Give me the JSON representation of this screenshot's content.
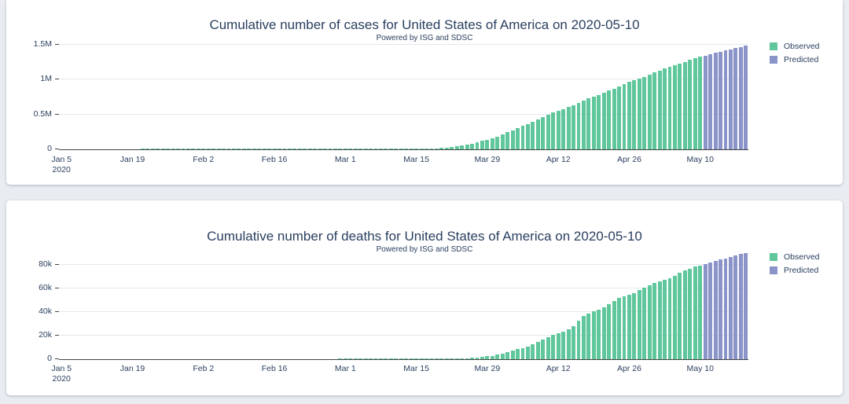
{
  "page": {
    "background": "#e9edf2",
    "card_background": "#ffffff"
  },
  "colors": {
    "observed": "#5fc79b",
    "predicted": "#8a94c8",
    "title_text": "#2a3f5f",
    "tick_text": "#2a3f5f",
    "axis_line": "#444444",
    "gridline": "#e5e8ec"
  },
  "chart_data": [
    {
      "type": "bar",
      "title": "Cumulative number of cases for United States of America on 2020-05-10",
      "subtitle": "Powered by ISG and SDSC",
      "ylabel": "",
      "xlabel": "",
      "ylim": [
        0,
        1580000
      ],
      "grid": true,
      "legend_position": "right-top",
      "y_ticks": [
        {
          "label": "0",
          "value": 0
        },
        {
          "label": "0.5M",
          "value": 500000
        },
        {
          "label": "1M",
          "value": 1000000
        },
        {
          "label": "1.5M",
          "value": 1500000
        }
      ],
      "x_ticks": [
        {
          "day": 0,
          "lines": [
            "Jan 5",
            "2020"
          ]
        },
        {
          "day": 14,
          "lines": [
            "Jan 19"
          ]
        },
        {
          "day": 28,
          "lines": [
            "Feb 2"
          ]
        },
        {
          "day": 42,
          "lines": [
            "Feb 16"
          ]
        },
        {
          "day": 56,
          "lines": [
            "Mar 1"
          ]
        },
        {
          "day": 70,
          "lines": [
            "Mar 15"
          ]
        },
        {
          "day": 84,
          "lines": [
            "Mar 29"
          ]
        },
        {
          "day": 98,
          "lines": [
            "Apr 12"
          ]
        },
        {
          "day": 112,
          "lines": [
            "Apr 26"
          ]
        },
        {
          "day": 126,
          "lines": [
            "May 10"
          ]
        }
      ],
      "series": [
        {
          "name": "Observed",
          "color_key": "observed",
          "start_date": "2020-01-05",
          "values": [
            0,
            0,
            0,
            0,
            0,
            0,
            0,
            0,
            0,
            0,
            0,
            0,
            0,
            0,
            0,
            0,
            1,
            1,
            1,
            2,
            2,
            2,
            5,
            5,
            5,
            5,
            6,
            8,
            8,
            11,
            11,
            11,
            11,
            11,
            11,
            11,
            11,
            12,
            12,
            13,
            13,
            13,
            15,
            15,
            15,
            15,
            15,
            15,
            35,
            35,
            35,
            53,
            57,
            60,
            64,
            68,
            75,
            100,
            124,
            158,
            221,
            319,
            435,
            541,
            704,
            994,
            1301,
            1697,
            2247,
            2943,
            3680,
            4663,
            6421,
            7786,
            13680,
            19100,
            25500,
            33300,
            43800,
            53700,
            65800,
            83800,
            101700,
            121400,
            140900,
            163800,
            186100,
            213400,
            243500,
            275600,
            308900,
            337100,
            366700,
            396200,
            428300,
            461400,
            496500,
            526400,
            555300,
            580600,
            607700,
            636400,
            667600,
            699700,
            732200,
            759100,
            784300,
            811900,
            842600,
            869200,
            905400,
            938200,
            965800,
            988500,
            1012600,
            1040500,
            1069400,
            1103500,
            1133100,
            1158300,
            1180600,
            1204400,
            1228600,
            1257000,
            1283900,
            1309500,
            1329300
          ]
        },
        {
          "name": "Predicted",
          "color_key": "predicted",
          "start_date": "2020-05-11",
          "values": [
            1347000,
            1365000,
            1383000,
            1400000,
            1418000,
            1436000,
            1453000,
            1471000,
            1488000
          ]
        }
      ]
    },
    {
      "type": "bar",
      "title": "Cumulative number of deaths for United States of America on 2020-05-10",
      "subtitle": "Powered by ISG and SDSC",
      "ylabel": "",
      "xlabel": "",
      "ylim": [
        0,
        93000
      ],
      "grid": true,
      "legend_position": "right-top",
      "y_ticks": [
        {
          "label": "0",
          "value": 0
        },
        {
          "label": "20k",
          "value": 20000
        },
        {
          "label": "40k",
          "value": 40000
        },
        {
          "label": "60k",
          "value": 60000
        },
        {
          "label": "80k",
          "value": 80000
        }
      ],
      "x_ticks": [
        {
          "day": 0,
          "lines": [
            "Jan 5",
            "2020"
          ]
        },
        {
          "day": 14,
          "lines": [
            "Jan 19"
          ]
        },
        {
          "day": 28,
          "lines": [
            "Feb 2"
          ]
        },
        {
          "day": 42,
          "lines": [
            "Feb 16"
          ]
        },
        {
          "day": 56,
          "lines": [
            "Mar 1"
          ]
        },
        {
          "day": 70,
          "lines": [
            "Mar 15"
          ]
        },
        {
          "day": 84,
          "lines": [
            "Mar 29"
          ]
        },
        {
          "day": 98,
          "lines": [
            "Apr 12"
          ]
        },
        {
          "day": 112,
          "lines": [
            "Apr 26"
          ]
        },
        {
          "day": 126,
          "lines": [
            "May 10"
          ]
        }
      ],
      "series": [
        {
          "name": "Observed",
          "color_key": "observed",
          "start_date": "2020-01-05",
          "values": [
            0,
            0,
            0,
            0,
            0,
            0,
            0,
            0,
            0,
            0,
            0,
            0,
            0,
            0,
            0,
            0,
            0,
            0,
            0,
            0,
            0,
            0,
            0,
            0,
            0,
            0,
            0,
            0,
            0,
            0,
            0,
            0,
            0,
            0,
            0,
            0,
            0,
            0,
            0,
            0,
            0,
            0,
            0,
            0,
            0,
            0,
            0,
            0,
            0,
            0,
            0,
            0,
            0,
            0,
            0,
            1,
            1,
            1,
            7,
            11,
            12,
            14,
            17,
            21,
            26,
            28,
            36,
            40,
            47,
            54,
            63,
            85,
            108,
            118,
            200,
            244,
            307,
            417,
            557,
            706,
            940,
            1209,
            1581,
            2026,
            2398,
            2978,
            3873,
            4757,
            5926,
            7087,
            8407,
            9619,
            10783,
            12798,
            14695,
            16478,
            18586,
            20463,
            22020,
            23529,
            25757,
            28326,
            32917,
            36773,
            38664,
            40661,
            42094,
            44444,
            46611,
            49724,
            51949,
            53755,
            54881,
            56259,
            58947,
            61187,
            62996,
            64943,
            66369,
            67682,
            68934,
            71064,
            73431,
            75662,
            77180,
            78746,
            79526
          ]
        },
        {
          "name": "Predicted",
          "color_key": "predicted",
          "start_date": "2020-05-11",
          "values": [
            80800,
            82100,
            83400,
            84700,
            85900,
            87100,
            88300,
            89400,
            90500
          ]
        }
      ]
    }
  ]
}
